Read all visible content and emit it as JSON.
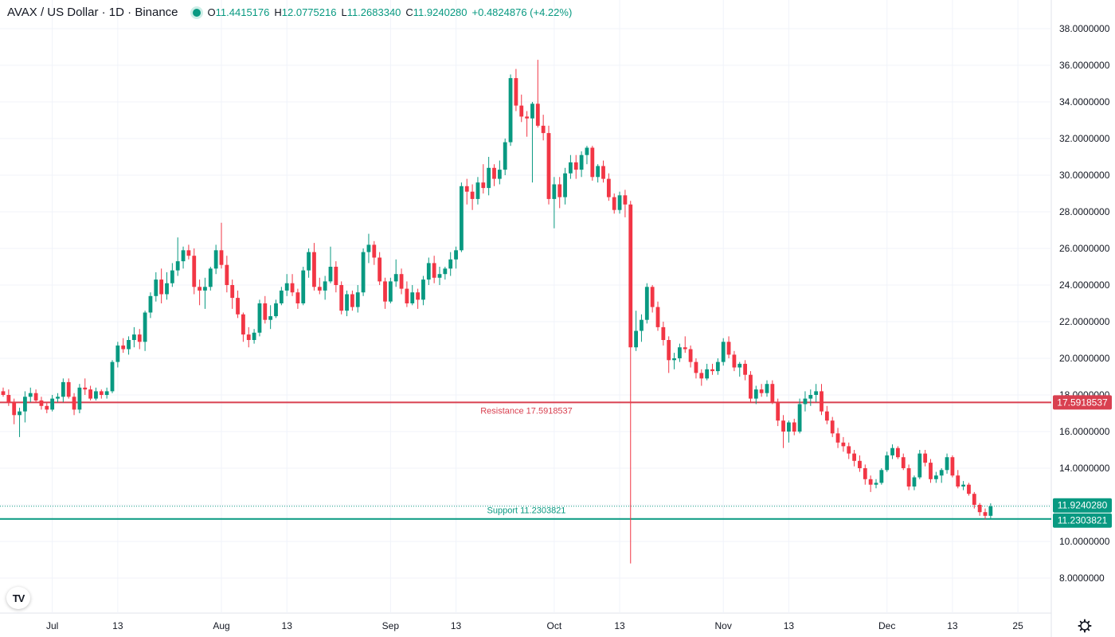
{
  "header": {
    "title": "AVAX / US Dollar · 1D · Binance",
    "open_label": "O",
    "open": "11.4415176",
    "high_label": "H",
    "high": "12.0775216",
    "low_label": "L",
    "low": "11.2683340",
    "close_label": "C",
    "close": "11.9240280",
    "change": "+0.4824876 (+4.22%)"
  },
  "logo_text": "TV",
  "colors": {
    "up": "#089981",
    "down": "#f23645",
    "resistance": "#d94050",
    "support": "#089981",
    "grid": "#f0f3fa",
    "axis_text": "#131722"
  },
  "chart_data": {
    "type": "candlestick",
    "y_axis": {
      "min": 7.0,
      "max": 39.0,
      "ticks": [
        "38.0000000",
        "36.0000000",
        "34.0000000",
        "32.0000000",
        "30.0000000",
        "28.0000000",
        "26.0000000",
        "24.0000000",
        "22.0000000",
        "20.0000000",
        "18.0000000",
        "16.0000000",
        "14.0000000",
        "12.0000000",
        "10.0000000",
        "8.0000000"
      ]
    },
    "x_axis": {
      "start_date": "2024-06-22",
      "ticks": [
        {
          "label": "Jul",
          "day": 9
        },
        {
          "label": "13",
          "day": 21
        },
        {
          "label": "Aug",
          "day": 40
        },
        {
          "label": "13",
          "day": 52
        },
        {
          "label": "Sep",
          "day": 71
        },
        {
          "label": "13",
          "day": 83
        },
        {
          "label": "Oct",
          "day": 101
        },
        {
          "label": "13",
          "day": 113
        },
        {
          "label": "Nov",
          "day": 132
        },
        {
          "label": "13",
          "day": 144
        },
        {
          "label": "Dec",
          "day": 162
        },
        {
          "label": "13",
          "day": 174
        },
        {
          "label": "25",
          "day": 186
        }
      ]
    },
    "lines": [
      {
        "name": "Resistance",
        "label": "Resistance 17.5918537",
        "value": 17.5918537,
        "badge": "17.5918537",
        "color": "#d94050"
      },
      {
        "name": "Support",
        "label": "Support 11.2303821",
        "value": 11.2303821,
        "badge": "11.2303821",
        "color": "#089981"
      }
    ],
    "last_price": {
      "value": 11.924028,
      "badge": "11.9240280"
    },
    "candles": [
      [
        18.2,
        18.4,
        17.9,
        18.0
      ],
      [
        18.0,
        18.3,
        17.4,
        17.6
      ],
      [
        17.6,
        17.8,
        16.4,
        16.9
      ],
      [
        16.9,
        17.3,
        15.7,
        17.1
      ],
      [
        17.1,
        18.2,
        16.5,
        17.9
      ],
      [
        17.9,
        18.4,
        17.6,
        18.1
      ],
      [
        18.1,
        18.3,
        17.6,
        17.7
      ],
      [
        17.7,
        17.9,
        17.2,
        17.4
      ],
      [
        17.4,
        17.6,
        17.0,
        17.2
      ],
      [
        17.2,
        18.0,
        17.1,
        17.8
      ],
      [
        17.8,
        18.1,
        17.6,
        17.9
      ],
      [
        17.9,
        18.9,
        17.6,
        18.7
      ],
      [
        18.7,
        18.9,
        17.8,
        17.9
      ],
      [
        17.9,
        18.1,
        16.9,
        17.2
      ],
      [
        17.2,
        18.6,
        17.0,
        18.4
      ],
      [
        18.4,
        18.9,
        18.0,
        18.3
      ],
      [
        18.3,
        18.5,
        17.7,
        17.8
      ],
      [
        17.8,
        18.4,
        17.7,
        18.2
      ],
      [
        18.2,
        18.3,
        17.8,
        18.0
      ],
      [
        18.0,
        18.4,
        17.8,
        18.2
      ],
      [
        18.2,
        19.9,
        18.1,
        19.8
      ],
      [
        19.8,
        20.9,
        19.5,
        20.7
      ],
      [
        20.7,
        21.1,
        20.3,
        20.5
      ],
      [
        20.5,
        21.2,
        20.2,
        21.0
      ],
      [
        21.0,
        21.7,
        20.6,
        21.3
      ],
      [
        21.3,
        21.6,
        20.5,
        20.9
      ],
      [
        20.9,
        22.6,
        20.4,
        22.5
      ],
      [
        22.5,
        23.6,
        22.2,
        23.4
      ],
      [
        23.4,
        24.7,
        23.1,
        24.3
      ],
      [
        24.3,
        24.9,
        23.0,
        23.5
      ],
      [
        23.5,
        24.7,
        23.2,
        24.1
      ],
      [
        24.1,
        25.2,
        23.9,
        24.8
      ],
      [
        24.8,
        26.6,
        24.5,
        25.3
      ],
      [
        25.3,
        26.1,
        24.9,
        25.9
      ],
      [
        25.9,
        26.2,
        25.4,
        25.6
      ],
      [
        25.6,
        26.0,
        23.5,
        23.9
      ],
      [
        23.9,
        24.3,
        22.9,
        23.7
      ],
      [
        23.7,
        24.4,
        22.7,
        23.9
      ],
      [
        23.9,
        25.0,
        23.7,
        24.9
      ],
      [
        24.9,
        26.2,
        24.6,
        25.9
      ],
      [
        25.9,
        27.4,
        24.9,
        25.1
      ],
      [
        25.1,
        25.6,
        23.6,
        24.0
      ],
      [
        24.0,
        24.3,
        22.7,
        23.3
      ],
      [
        23.3,
        23.7,
        22.2,
        22.4
      ],
      [
        22.4,
        22.5,
        20.9,
        21.3
      ],
      [
        21.3,
        21.7,
        20.6,
        21.0
      ],
      [
        21.0,
        21.6,
        20.8,
        21.4
      ],
      [
        21.4,
        23.2,
        21.2,
        23.0
      ],
      [
        23.0,
        23.4,
        21.9,
        22.1
      ],
      [
        22.1,
        22.9,
        21.6,
        22.3
      ],
      [
        22.3,
        23.2,
        22.2,
        23.0
      ],
      [
        23.0,
        23.9,
        22.9,
        23.7
      ],
      [
        23.7,
        24.6,
        23.4,
        24.1
      ],
      [
        24.1,
        24.6,
        23.4,
        23.6
      ],
      [
        23.6,
        23.8,
        22.7,
        23.0
      ],
      [
        23.0,
        25.0,
        22.9,
        24.8
      ],
      [
        24.8,
        26.0,
        24.4,
        25.8
      ],
      [
        25.8,
        26.3,
        23.7,
        23.9
      ],
      [
        23.9,
        24.4,
        23.5,
        23.7
      ],
      [
        23.7,
        24.5,
        23.2,
        24.2
      ],
      [
        24.2,
        26.1,
        24.1,
        25.0
      ],
      [
        25.0,
        25.3,
        23.6,
        24.0
      ],
      [
        24.0,
        24.2,
        22.4,
        22.6
      ],
      [
        22.6,
        23.7,
        22.3,
        23.5
      ],
      [
        23.5,
        23.7,
        22.6,
        22.8
      ],
      [
        22.8,
        24.0,
        22.5,
        23.6
      ],
      [
        23.6,
        26.0,
        23.4,
        25.8
      ],
      [
        25.8,
        26.8,
        25.2,
        26.2
      ],
      [
        26.2,
        26.4,
        25.1,
        25.5
      ],
      [
        25.5,
        25.8,
        24.0,
        24.2
      ],
      [
        24.2,
        24.4,
        22.7,
        23.1
      ],
      [
        23.1,
        24.4,
        23.0,
        24.2
      ],
      [
        24.2,
        25.4,
        23.9,
        24.6
      ],
      [
        24.6,
        24.9,
        23.5,
        23.8
      ],
      [
        23.8,
        24.2,
        22.8,
        23.0
      ],
      [
        23.0,
        24.0,
        22.9,
        23.6
      ],
      [
        23.6,
        23.8,
        22.7,
        23.2
      ],
      [
        23.2,
        24.5,
        22.9,
        24.3
      ],
      [
        24.3,
        25.5,
        24.0,
        25.2
      ],
      [
        25.2,
        25.6,
        24.1,
        24.4
      ],
      [
        24.4,
        25.0,
        24.0,
        24.6
      ],
      [
        24.6,
        25.0,
        24.3,
        24.9
      ],
      [
        24.9,
        25.8,
        24.5,
        25.4
      ],
      [
        25.4,
        26.1,
        24.9,
        25.9
      ],
      [
        25.9,
        29.6,
        25.8,
        29.4
      ],
      [
        29.4,
        29.8,
        28.4,
        29.1
      ],
      [
        29.1,
        29.5,
        28.1,
        28.7
      ],
      [
        28.7,
        29.9,
        28.4,
        29.6
      ],
      [
        29.6,
        30.6,
        29.0,
        29.3
      ],
      [
        29.3,
        31.0,
        28.9,
        30.4
      ],
      [
        30.4,
        30.6,
        29.4,
        29.8
      ],
      [
        29.8,
        30.8,
        29.5,
        30.3
      ],
      [
        30.3,
        32.0,
        30.0,
        31.8
      ],
      [
        31.8,
        35.5,
        31.6,
        35.3
      ],
      [
        35.3,
        35.8,
        33.5,
        33.8
      ],
      [
        33.8,
        34.4,
        32.9,
        33.2
      ],
      [
        33.2,
        33.5,
        32.1,
        33.1
      ],
      [
        33.1,
        34.0,
        29.6,
        33.9
      ],
      [
        33.9,
        36.3,
        32.6,
        32.7
      ],
      [
        32.7,
        33.3,
        31.9,
        32.3
      ],
      [
        32.3,
        32.7,
        28.4,
        28.7
      ],
      [
        28.7,
        29.9,
        27.1,
        29.5
      ],
      [
        29.5,
        29.9,
        28.2,
        28.8
      ],
      [
        28.8,
        30.4,
        28.4,
        30.1
      ],
      [
        30.1,
        31.1,
        29.8,
        30.7
      ],
      [
        30.7,
        31.1,
        29.8,
        30.3
      ],
      [
        30.3,
        31.3,
        29.9,
        31.1
      ],
      [
        31.1,
        31.6,
        30.6,
        31.5
      ],
      [
        31.5,
        31.6,
        29.7,
        29.9
      ],
      [
        29.9,
        30.6,
        29.6,
        30.5
      ],
      [
        30.5,
        30.8,
        29.6,
        29.8
      ],
      [
        29.8,
        30.1,
        28.6,
        28.8
      ],
      [
        28.8,
        29.0,
        27.9,
        28.1
      ],
      [
        28.1,
        29.1,
        27.9,
        28.9
      ],
      [
        28.9,
        29.2,
        27.7,
        28.4
      ],
      [
        28.4,
        28.6,
        8.8,
        20.6
      ],
      [
        20.6,
        22.6,
        20.4,
        21.5
      ],
      [
        21.5,
        22.4,
        20.9,
        22.1
      ],
      [
        22.1,
        24.1,
        21.9,
        23.9
      ],
      [
        23.9,
        24.0,
        22.5,
        22.8
      ],
      [
        22.8,
        23.1,
        21.5,
        21.7
      ],
      [
        21.7,
        22.0,
        20.7,
        21.0
      ],
      [
        21.0,
        21.2,
        19.2,
        19.9
      ],
      [
        19.9,
        20.3,
        19.4,
        20.0
      ],
      [
        20.0,
        20.8,
        19.8,
        20.6
      ],
      [
        20.6,
        21.2,
        20.3,
        20.5
      ],
      [
        20.5,
        20.7,
        19.5,
        19.8
      ],
      [
        19.8,
        20.0,
        18.9,
        19.2
      ],
      [
        19.2,
        19.4,
        18.5,
        18.9
      ],
      [
        18.9,
        19.7,
        18.8,
        19.4
      ],
      [
        19.4,
        19.7,
        19.1,
        19.3
      ],
      [
        19.3,
        20.0,
        19.1,
        19.8
      ],
      [
        19.8,
        21.1,
        19.6,
        20.9
      ],
      [
        20.9,
        21.2,
        20.0,
        20.2
      ],
      [
        20.2,
        20.4,
        19.3,
        19.5
      ],
      [
        19.5,
        19.8,
        19.0,
        19.7
      ],
      [
        19.7,
        19.9,
        18.8,
        19.1
      ],
      [
        19.1,
        19.3,
        17.6,
        17.8
      ],
      [
        17.8,
        18.5,
        17.5,
        18.3
      ],
      [
        18.3,
        18.6,
        17.9,
        18.1
      ],
      [
        18.1,
        18.8,
        17.9,
        18.6
      ],
      [
        18.6,
        18.8,
        17.5,
        17.6
      ],
      [
        17.6,
        17.8,
        16.3,
        16.6
      ],
      [
        16.6,
        16.9,
        15.1,
        16.0
      ],
      [
        16.0,
        16.6,
        15.4,
        16.5
      ],
      [
        16.5,
        16.7,
        15.8,
        16.0
      ],
      [
        16.0,
        17.8,
        15.9,
        17.5
      ],
      [
        17.5,
        18.2,
        17.1,
        17.8
      ],
      [
        17.8,
        18.3,
        17.4,
        18.0
      ],
      [
        18.0,
        18.6,
        17.6,
        18.2
      ],
      [
        18.2,
        18.6,
        16.9,
        17.1
      ],
      [
        17.1,
        17.4,
        16.4,
        16.6
      ],
      [
        16.6,
        16.8,
        15.7,
        15.9
      ],
      [
        15.9,
        16.2,
        15.1,
        15.4
      ],
      [
        15.4,
        15.7,
        14.9,
        15.2
      ],
      [
        15.2,
        15.4,
        14.5,
        14.8
      ],
      [
        14.8,
        15.0,
        14.1,
        14.4
      ],
      [
        14.4,
        14.7,
        13.8,
        14.0
      ],
      [
        14.0,
        14.2,
        13.1,
        13.4
      ],
      [
        13.4,
        13.6,
        12.7,
        13.1
      ],
      [
        13.1,
        13.4,
        12.9,
        13.2
      ],
      [
        13.2,
        14.0,
        13.1,
        13.9
      ],
      [
        13.9,
        14.9,
        13.8,
        14.7
      ],
      [
        14.7,
        15.3,
        14.5,
        15.1
      ],
      [
        15.1,
        15.2,
        14.5,
        14.6
      ],
      [
        14.6,
        14.8,
        13.9,
        14.0
      ],
      [
        14.0,
        14.2,
        12.8,
        13.0
      ],
      [
        13.0,
        13.6,
        12.8,
        13.5
      ],
      [
        13.5,
        15.0,
        13.4,
        14.8
      ],
      [
        14.8,
        15.0,
        14.1,
        14.3
      ],
      [
        14.3,
        14.5,
        13.2,
        13.4
      ],
      [
        13.4,
        13.8,
        13.2,
        13.6
      ],
      [
        13.6,
        14.0,
        13.2,
        13.9
      ],
      [
        13.9,
        14.8,
        13.7,
        14.6
      ],
      [
        14.6,
        14.7,
        13.5,
        13.6
      ],
      [
        13.6,
        13.9,
        12.9,
        13.0
      ],
      [
        13.0,
        13.3,
        12.8,
        13.1
      ],
      [
        13.1,
        13.2,
        12.5,
        12.6
      ],
      [
        12.6,
        12.7,
        11.8,
        12.0
      ],
      [
        12.0,
        12.1,
        11.4,
        11.6
      ],
      [
        11.6,
        11.8,
        11.2,
        11.4
      ],
      [
        11.4,
        12.08,
        11.27,
        11.92
      ]
    ]
  }
}
